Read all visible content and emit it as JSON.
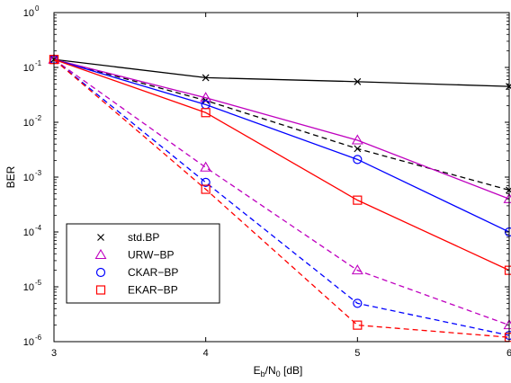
{
  "chart_data": {
    "type": "line",
    "xlabel": "E_b/N_0 [dB]",
    "xlabel_parts": {
      "main": "E",
      "sub1": "b",
      "mid": "/N",
      "sub2": "0",
      "tail": " [dB]"
    },
    "ylabel": "BER",
    "xlim": [
      3,
      6
    ],
    "ylim": [
      1e-06,
      1
    ],
    "yscale": "log",
    "grid": false,
    "x_ticks": [
      3,
      4,
      5,
      6
    ],
    "x_tick_labels": [
      "3",
      "4",
      "5",
      "6"
    ],
    "y_ticks": [
      1,
      0.1,
      0.01,
      0.001,
      0.0001,
      1e-05,
      1e-06
    ],
    "y_tick_labels": [
      {
        "base": "10",
        "exp": "0"
      },
      {
        "base": "10",
        "exp": "-1"
      },
      {
        "base": "10",
        "exp": "-2"
      },
      {
        "base": "10",
        "exp": "-3"
      },
      {
        "base": "10",
        "exp": "-4"
      },
      {
        "base": "10",
        "exp": "-5"
      },
      {
        "base": "10",
        "exp": "-6"
      }
    ],
    "legend_position": "bottom-left",
    "legend": [
      {
        "label": "std.BP",
        "marker": "x",
        "color": "#000000"
      },
      {
        "label": "URW−BP",
        "marker": "triangle",
        "color": "#bf00bf"
      },
      {
        "label": "CKAR−BP",
        "marker": "circle",
        "color": "#0000ff"
      },
      {
        "label": "EKAR−BP",
        "marker": "square",
        "color": "#ff0000"
      }
    ],
    "x": [
      3,
      4,
      5,
      6
    ],
    "series": [
      {
        "name": "std.BP",
        "line": "solid",
        "marker": "x",
        "color": "#000000",
        "values": [
          0.14,
          0.065,
          0.055,
          0.045
        ]
      },
      {
        "line": "dashed",
        "marker": "x",
        "color": "#000000",
        "values": [
          0.14,
          0.025,
          0.0033,
          0.00058
        ]
      },
      {
        "name": "URW−BP",
        "line": "solid",
        "marker": "triangle",
        "color": "#bf00bf",
        "values": [
          0.14,
          0.028,
          0.0047,
          0.0004
        ]
      },
      {
        "line": "dashed",
        "marker": "triangle",
        "color": "#bf00bf",
        "values": [
          0.14,
          0.0015,
          2e-05,
          2e-06
        ]
      },
      {
        "name": "CKAR−BP",
        "line": "solid",
        "marker": "circle",
        "color": "#0000ff",
        "values": [
          0.14,
          0.021,
          0.0021,
          0.0001
        ]
      },
      {
        "line": "dashed",
        "marker": "circle",
        "color": "#0000ff",
        "values": [
          0.14,
          0.0008,
          5e-06,
          1.3e-06
        ]
      },
      {
        "name": "EKAR−BP",
        "line": "solid",
        "marker": "square",
        "color": "#ff0000",
        "values": [
          0.14,
          0.015,
          0.00038,
          2e-05
        ]
      },
      {
        "line": "dashed",
        "marker": "square",
        "color": "#ff0000",
        "values": [
          0.14,
          0.0006,
          2e-06,
          1.2e-06
        ]
      }
    ]
  }
}
